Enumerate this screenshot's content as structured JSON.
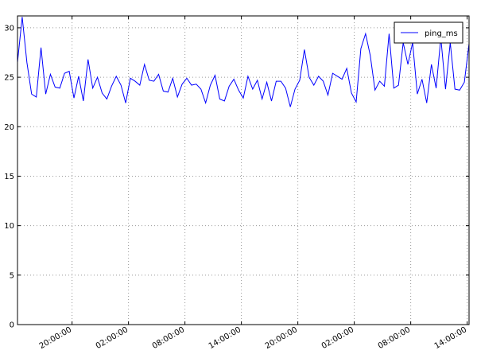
{
  "chart_data": {
    "type": "line",
    "x": [
      14.2,
      14.7,
      15.2,
      15.7,
      16.2,
      16.7,
      17.2,
      17.7,
      18.2,
      18.7,
      19.2,
      19.7,
      20.2,
      20.7,
      21.2,
      21.7,
      22.2,
      22.7,
      23.2,
      23.7,
      24.2,
      24.7,
      25.2,
      25.7,
      26.2,
      26.7,
      27.2,
      27.7,
      28.2,
      28.7,
      29.2,
      29.7,
      30.2,
      30.7,
      31.2,
      31.7,
      32.2,
      32.7,
      33.2,
      33.7,
      34.2,
      34.7,
      35.2,
      35.7,
      36.2,
      36.7,
      37.2,
      37.7,
      38.2,
      38.7,
      39.2,
      39.7,
      40.2,
      40.7,
      41.2,
      41.7,
      42.2,
      42.7,
      43.2,
      43.7,
      44.2,
      44.7,
      45.2,
      45.7,
      46.2,
      46.7,
      47.2,
      47.7,
      48.2,
      48.7,
      49.2,
      49.7,
      50.2,
      50.7,
      51.2,
      51.7,
      52.2,
      52.7,
      53.2,
      53.7,
      54.2,
      54.7,
      55.2,
      55.7,
      56.2,
      56.7,
      57.2,
      57.7,
      58.2,
      58.7,
      59.2,
      59.7,
      60.2,
      60.7,
      61.2,
      61.7,
      62.2
    ],
    "series": [
      {
        "name": "ping_ms",
        "color": "#0000ff",
        "values": [
          26.5,
          31.1,
          26.5,
          23.3,
          23.0,
          28.0,
          23.3,
          25.3,
          24.0,
          23.9,
          25.4,
          25.6,
          22.9,
          25.1,
          22.6,
          26.8,
          23.9,
          25.0,
          23.4,
          22.8,
          24.1,
          25.1,
          24.2,
          22.4,
          24.9,
          24.6,
          24.2,
          26.3,
          24.7,
          24.6,
          25.3,
          23.6,
          23.5,
          24.9,
          23.0,
          24.3,
          24.9,
          24.2,
          24.3,
          23.8,
          22.4,
          24.2,
          25.2,
          22.8,
          22.6,
          24.1,
          24.8,
          23.7,
          22.9,
          25.1,
          23.8,
          24.7,
          22.8,
          24.5,
          22.6,
          24.6,
          24.6,
          23.9,
          22.0,
          23.8,
          24.7,
          27.8,
          25.0,
          24.2,
          25.1,
          24.6,
          23.2,
          25.4,
          25.1,
          24.8,
          25.9,
          23.4,
          22.5,
          27.9,
          29.4,
          27.2,
          23.7,
          24.6,
          24.1,
          29.4,
          23.9,
          24.2,
          28.5,
          26.3,
          28.5,
          23.3,
          24.8,
          22.4,
          26.3,
          23.9,
          29.0,
          23.8,
          28.5,
          23.8,
          23.7,
          24.5,
          28.4
        ]
      }
    ],
    "xlim": [
      14.2,
      62.2
    ],
    "xticks": [
      {
        "value": 20,
        "label": "20:00:00"
      },
      {
        "value": 26,
        "label": "02:00:00"
      },
      {
        "value": 32,
        "label": "08:00:00"
      },
      {
        "value": 38,
        "label": "14:00:00"
      },
      {
        "value": 44,
        "label": "20:00:00"
      },
      {
        "value": 50,
        "label": "02:00:00"
      },
      {
        "value": 56,
        "label": "08:00:00"
      },
      {
        "value": 62,
        "label": "14:00:00"
      }
    ],
    "ylim": [
      0,
      31.2
    ],
    "yticks": [
      0,
      5,
      10,
      15,
      20,
      25,
      30
    ],
    "grid": true,
    "legend": "upper right"
  }
}
